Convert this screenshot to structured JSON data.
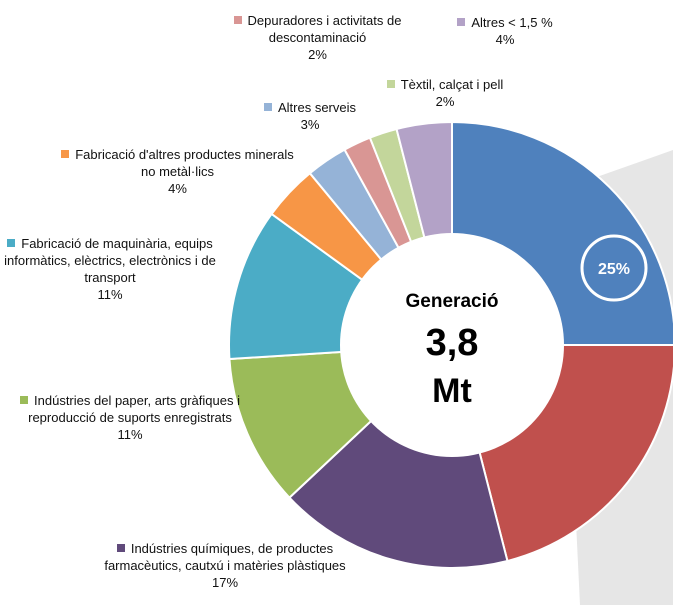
{
  "chart_data": {
    "type": "donut",
    "center_title": "Generació",
    "center_value": "3,8",
    "center_unit": "Mt",
    "categories": [
      "Generació",
      null,
      "Indústries químiques, de productes farmacèutics, cautxú i matèries plàstiques",
      "Indústries del paper, arts gràfiques i reproducció de suports enregistrats",
      "Fabricació de maquinària, equips informàtics, elèctrics, electrònics i de transport",
      "Fabricació d'altres productes minerals no metàl·lics",
      "Altres serveis",
      "Depuradores i activitats de descontaminació",
      "Tèxtil, calçat i pell",
      "Altres < 1,5 %"
    ],
    "values": [
      25,
      21,
      17,
      11,
      11,
      4,
      3,
      2,
      2,
      4
    ],
    "value_labels": [
      "25%",
      null,
      "17%",
      "11%",
      "11%",
      "4%",
      "3%",
      "2%",
      "2%",
      "4%"
    ],
    "colors": [
      "#4f81bd",
      "#c0504d",
      "#604a7b",
      "#9bbb59",
      "#4bacc6",
      "#f79646",
      "#95b3d7",
      "#d99694",
      "#c3d69b",
      "#b3a2c7"
    ]
  }
}
